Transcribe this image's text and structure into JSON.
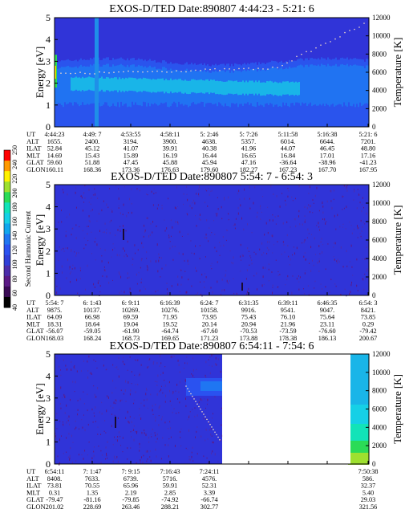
{
  "chart_data": [
    {
      "type": "heatmap",
      "title": "EXOS-D/TED   Date:890807  4:44:23 - 5:21: 6",
      "ylabel": "Energy [eV]",
      "y2label": "Temperature [K]",
      "ylim": [
        0,
        5
      ],
      "yticks": [
        "0",
        "1",
        "2",
        "3",
        "4",
        "5"
      ],
      "y2lim": [
        0,
        12000
      ],
      "y2ticks": [
        "0",
        "2000",
        "4000",
        "6000",
        "8000",
        "10000",
        "12000"
      ],
      "table": {
        "rows": [
          {
            "label": "UT",
            "values": [
              "4:44:23",
              "4:49: 7",
              "4:53:55",
              "4:58:11",
              "5: 2:46",
              "5: 7:26",
              "5:11:58",
              "5:16:38",
              "5:21: 6"
            ]
          },
          {
            "label": "ALT",
            "values": [
              "1655.",
              "2400.",
              "3194.",
              "3900.",
              "4638.",
              "5357.",
              "6014.",
              "6644.",
              "7201."
            ]
          },
          {
            "label": "ILAT",
            "values": [
              "52.84",
              "45.12",
              "41.07",
              "39.91",
              "40.38",
              "41.96",
              "44.07",
              "46.45",
              "48.80"
            ]
          },
          {
            "label": "MLT",
            "values": [
              "14.69",
              "15.43",
              "15.89",
              "16.19",
              "16.44",
              "16.65",
              "16.84",
              "17.01",
              "17.16"
            ]
          },
          {
            "label": "GLAT",
            "values": [
              "59.60",
              "51.88",
              "47.45",
              "45.88",
              "45.94",
              "47.16",
              "-36.64",
              "-38.96",
              "-41.23"
            ]
          },
          {
            "label": "GLON",
            "values": [
              "160.11",
              "168.36",
              "173.36",
              "176.63",
              "179.60",
              "182.27",
              "167.23",
              "167.70",
              "167.95"
            ]
          }
        ]
      }
    },
    {
      "type": "heatmap",
      "title": "EXOS-D/TED   Date:890807  5:54: 7 - 6:54: 3",
      "ylabel": "Energy [eV]",
      "y2label": "Temperature [K]",
      "ylim": [
        0,
        5
      ],
      "yticks": [
        "0",
        "1",
        "2",
        "3",
        "4",
        "5"
      ],
      "y2lim": [
        0,
        12000
      ],
      "y2ticks": [
        "0",
        "2000",
        "4000",
        "6000",
        "8000",
        "10000",
        "12000"
      ],
      "table": {
        "rows": [
          {
            "label": "UT",
            "values": [
              "5:54: 7",
              "6: 1:43",
              "6: 9:11",
              "6:16:39",
              "6:24: 7",
              "6:31:35",
              "6:39:11",
              "6:46:35",
              "6:54: 3"
            ]
          },
          {
            "label": "ALT",
            "values": [
              "9875.",
              "10137.",
              "10269.",
              "10276.",
              "10158.",
              "9916.",
              "9541.",
              "9047.",
              "8421."
            ]
          },
          {
            "label": "ILAT",
            "values": [
              "64.09",
              "66.98",
              "69.59",
              "71.95",
              "73.95",
              "75.43",
              "76.10",
              "75.64",
              "73.85"
            ]
          },
          {
            "label": "MLT",
            "values": [
              "18.31",
              "18.64",
              "19.04",
              "19.52",
              "20.14",
              "20.94",
              "21.96",
              "23.11",
              "0.29"
            ]
          },
          {
            "label": "GLAT",
            "values": [
              "-56.07",
              "-59.05",
              "-61.90",
              "-64.74",
              "-67.60",
              "-70.53",
              "-73.59",
              "-76.60",
              "-79.42"
            ]
          },
          {
            "label": "GLON",
            "values": [
              "168.03",
              "168.24",
              "168.73",
              "169.65",
              "171.23",
              "173.88",
              "178.38",
              "186.13",
              "200.67"
            ]
          }
        ]
      }
    },
    {
      "type": "heatmap",
      "title": "EXOS-D/TED   Date:890807  6:54:11 - 7:54: 6",
      "ylabel": "Energy [eV]",
      "y2label": "Temperature [K]",
      "ylim": [
        0,
        5
      ],
      "yticks": [
        "0",
        "1",
        "2",
        "3",
        "4",
        "5"
      ],
      "y2lim": [
        0,
        12000
      ],
      "y2ticks": [
        "0",
        "2000",
        "4000",
        "6000",
        "8000",
        "10000",
        "12000"
      ],
      "table": {
        "rows": [
          {
            "label": "UT",
            "values": [
              "6:54:11",
              "7: 1:47",
              "7: 9:15",
              "7:16:43",
              "7:24:11",
              "",
              "",
              "",
              "7:50:38"
            ]
          },
          {
            "label": "ALT",
            "values": [
              "8408.",
              "7633.",
              "6739.",
              "5716.",
              "4576.",
              "",
              "",
              "",
              "586."
            ]
          },
          {
            "label": "ILAT",
            "values": [
              "73.81",
              "70.55",
              "65.96",
              "59.91",
              "52.31",
              "",
              "",
              "",
              "32.37"
            ]
          },
          {
            "label": "MLT",
            "values": [
              "0.31",
              "1.35",
              "2.19",
              "2.85",
              "3.39",
              "",
              "",
              "",
              "5.40"
            ]
          },
          {
            "label": "GLAT",
            "values": [
              "-79.47",
              "-81.16",
              "-79.85",
              "-74.92",
              "-66.74",
              "",
              "",
              "",
              "29.03"
            ]
          },
          {
            "label": "GLON",
            "values": [
              "201.02",
              "228.69",
              "263.46",
              "288.21",
              "302.77",
              "",
              "",
              "",
              "321.56"
            ]
          }
        ]
      }
    }
  ],
  "colorbar": {
    "label": "Second Harmonic Current",
    "ticks": [
      "40",
      "60",
      "80",
      "100",
      "120",
      "140",
      "160",
      "180",
      "200",
      "220",
      "240",
      "250"
    ],
    "colors": [
      "#000000",
      "#3a0b55",
      "#5b1a86",
      "#4c2dab",
      "#2f3fd8",
      "#2a52f0",
      "#1f76f2",
      "#11a7ee",
      "#16d0e6",
      "#12e3b8",
      "#2bdb56",
      "#9ee02f",
      "#fff200",
      "#ff9a00",
      "#ff0000"
    ]
  },
  "colors": {
    "background_blue": "#3034d8",
    "band_light": "#19b5e8",
    "band_mid": "#2073f2",
    "band_pale": "#2a58f0",
    "trace_dot": "#f0d8c8"
  }
}
